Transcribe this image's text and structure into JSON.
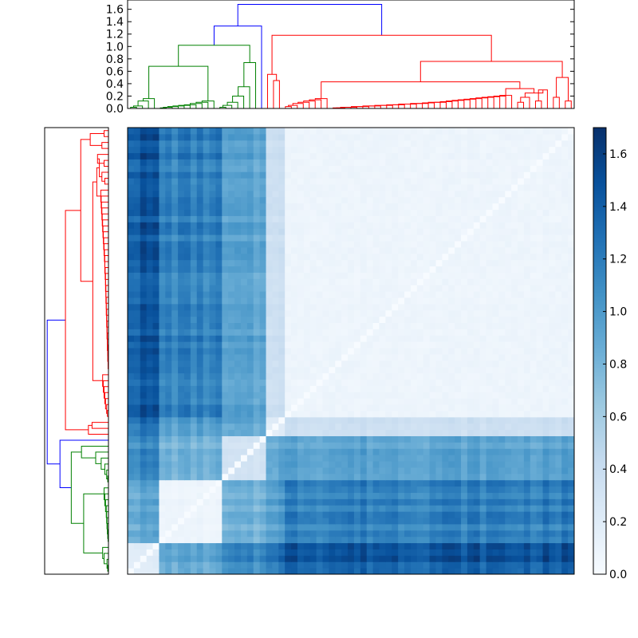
{
  "chart_data": [
    {
      "type": "dendrogram",
      "orientation": "top",
      "yticks": [
        0.0,
        0.2,
        0.4,
        0.6,
        0.8,
        1.0,
        1.2,
        1.4,
        1.6
      ],
      "ylim": [
        0,
        1.75
      ],
      "tick_labels": [
        "0.0",
        "0.2",
        "0.4",
        "0.6",
        "0.8",
        "1.0",
        "1.2",
        "1.4",
        "1.6"
      ],
      "cluster_colors": {
        "root": "#0000ff",
        "green": "#008000",
        "red": "#ff0000"
      },
      "merge_heights": {
        "root": 1.68,
        "second": 1.33,
        "red_top": 1.18,
        "green_top": 1.02,
        "red_sub": 0.76
      }
    },
    {
      "type": "dendrogram",
      "orientation": "left",
      "cluster_colors": {
        "root": "#0000ff",
        "green": "#008000",
        "red": "#ff0000"
      }
    },
    {
      "type": "heatmap",
      "n": 71,
      "colormap": "Blues",
      "value_range": [
        0.0,
        1.7
      ],
      "blocks": [
        {
          "name": "green-A",
          "start": 0,
          "end": 5
        },
        {
          "name": "green-B",
          "start": 5,
          "end": 15
        },
        {
          "name": "green-C",
          "start": 15,
          "end": 22
        },
        {
          "name": "red-A",
          "start": 22,
          "end": 25
        },
        {
          "name": "red-B",
          "start": 25,
          "end": 71
        }
      ]
    },
    {
      "type": "colorbar",
      "ticks": [
        0.0,
        0.2,
        0.4,
        0.6,
        0.8,
        1.0,
        1.2,
        1.4,
        1.6
      ],
      "tick_labels": [
        "0.0",
        "0.2",
        "0.4",
        "0.6",
        "0.8",
        "1.0",
        "1.2",
        "1.4",
        "1.6"
      ],
      "range": [
        0.0,
        1.7
      ],
      "low_color": "#f7fbff",
      "high_color": "#08306b"
    }
  ]
}
